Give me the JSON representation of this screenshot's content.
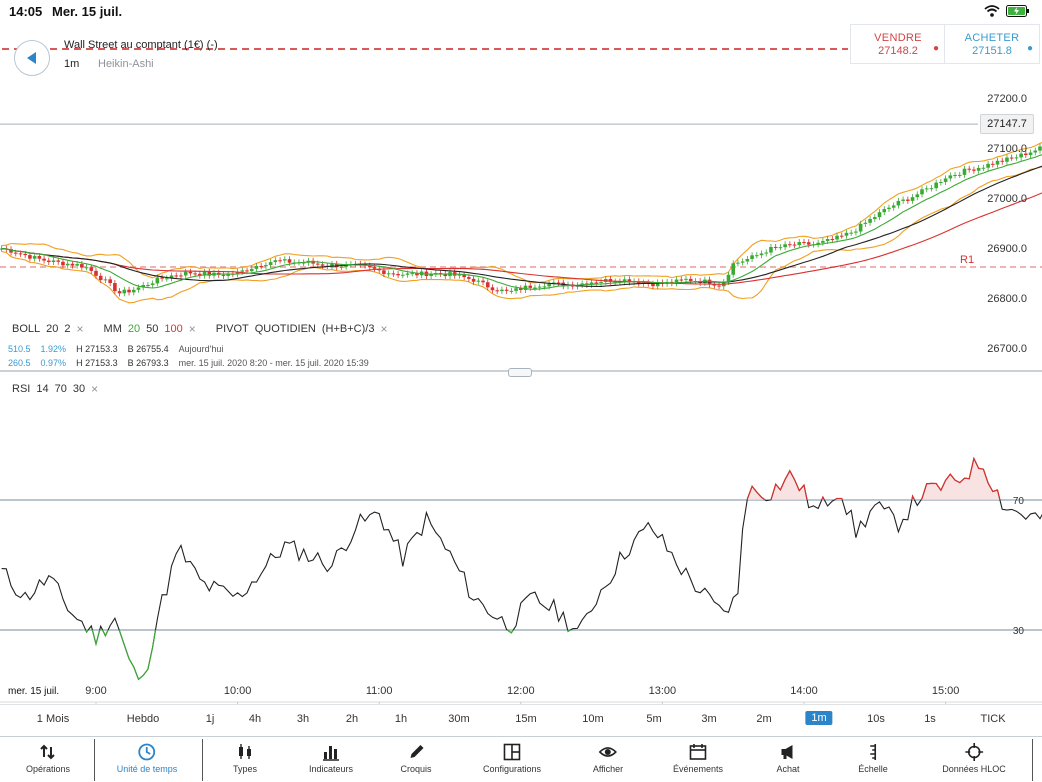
{
  "status_bar": {
    "time": "14:05",
    "date": "Mer. 15 juil."
  },
  "instrument": {
    "title": "Wall Street au comptant (1€) (-)",
    "timeframe": "1m",
    "chart_type": "Heikin-Ashi"
  },
  "quotes": {
    "sell_label": "VENDRE",
    "sell_price": "27148.2",
    "buy_label": "ACHETER",
    "buy_price": "27151.8"
  },
  "current_price_tag": "27147.7",
  "price_axis_labels": [
    "27200.0",
    "27100.0",
    "27000.0",
    "26900.0",
    "26800.0",
    "26700.0"
  ],
  "pivot_label": "R1",
  "indicators": {
    "boll": {
      "name": "BOLL",
      "p1": "20",
      "p2": "2"
    },
    "mm": {
      "name": "MM",
      "v1": "20",
      "v2": "50",
      "v3": "100"
    },
    "pivot": {
      "name": "PIVOT",
      "period": "QUOTIDIEN",
      "formula": "(H+B+C)/3"
    },
    "rsi": {
      "name": "RSI",
      "period": "14",
      "upper": "70",
      "lower": "30"
    }
  },
  "info_rows": [
    {
      "points": "510.5",
      "pct": "1.92%",
      "high": "H 27153.3",
      "low": "B 26755.4",
      "range": "Aujourd'hui"
    },
    {
      "points": "260.5",
      "pct": "0.97%",
      "high": "H 27153.3",
      "low": "B 26793.3",
      "range": "mer. 15 juil. 2020 8:20 - mer. 15 juil. 2020 15:39"
    }
  ],
  "rsi_axis_labels": {
    "upper": "70",
    "lower": "30"
  },
  "time_axis": {
    "date_label": "mer. 15 juil.",
    "labels": [
      "9:00",
      "10:00",
      "11:00",
      "12:00",
      "13:00",
      "14:00",
      "15:00"
    ]
  },
  "timeframes": [
    {
      "label": "1 Mois",
      "active": false
    },
    {
      "label": "Hebdo",
      "active": false
    },
    {
      "label": "1j",
      "active": false
    },
    {
      "label": "4h",
      "active": false
    },
    {
      "label": "3h",
      "active": false
    },
    {
      "label": "2h",
      "active": false
    },
    {
      "label": "1h",
      "active": false
    },
    {
      "label": "30m",
      "active": false
    },
    {
      "label": "15m",
      "active": false
    },
    {
      "label": "10m",
      "active": false
    },
    {
      "label": "5m",
      "active": false
    },
    {
      "label": "3m",
      "active": false
    },
    {
      "label": "2m",
      "active": false
    },
    {
      "label": "1m",
      "active": true
    },
    {
      "label": "10s",
      "active": false
    },
    {
      "label": "1s",
      "active": false
    },
    {
      "label": "TICK",
      "active": false
    }
  ],
  "toolbar": [
    {
      "label": "Opérations",
      "icon": "arrows-updown-icon"
    },
    {
      "label": "Unité de temps",
      "icon": "clock-icon"
    },
    {
      "label": "Types",
      "icon": "candles-icon"
    },
    {
      "label": "Indicateurs",
      "icon": "bar-chart-icon"
    },
    {
      "label": "Croquis",
      "icon": "pencil-icon"
    },
    {
      "label": "Configurations",
      "icon": "layout-icon"
    },
    {
      "label": "Afficher",
      "icon": "eye-icon"
    },
    {
      "label": "Événements",
      "icon": "calendar-icon"
    },
    {
      "label": "Achat",
      "icon": "megaphone-icon"
    },
    {
      "label": "Échelle",
      "icon": "scale-icon"
    },
    {
      "label": "Données HLOC",
      "icon": "crosshair-icon"
    }
  ],
  "colors": {
    "accent": "#2c84c9",
    "sell": "#d04545",
    "buy": "#3a9bd0",
    "candle_up": "#3aaa35",
    "candle_down": "#d9322e",
    "boll": "#f0a020",
    "mm20": "#3aaa35",
    "mm50": "#222222",
    "mm100": "#d9322e"
  }
}
